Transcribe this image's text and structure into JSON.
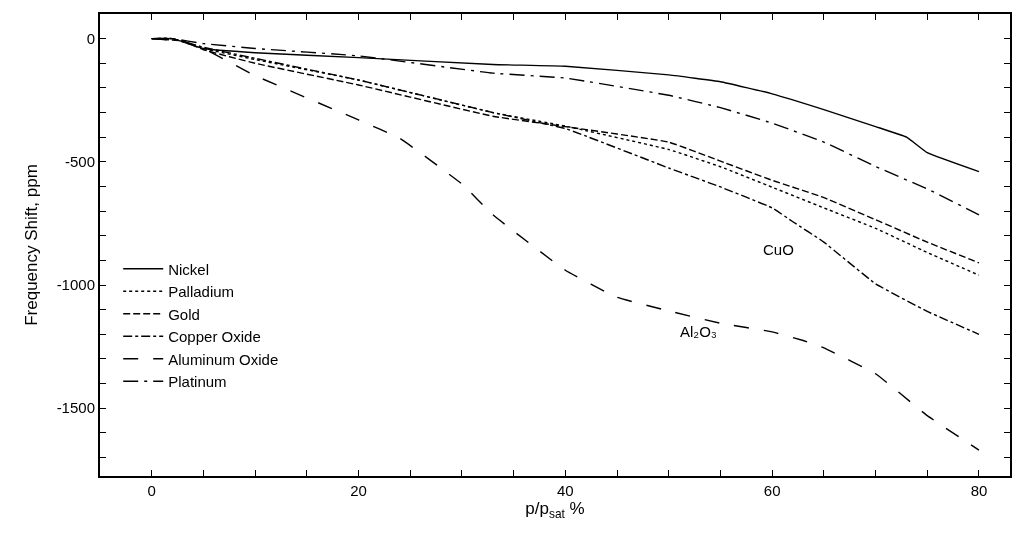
{
  "chart_data": {
    "type": "line",
    "xlabel": "p/p$_{sat}$ %",
    "ylabel": "Frequency Shift, ppm",
    "xlim": [
      -5,
      83
    ],
    "ylim": [
      -1775,
      100
    ],
    "xticks": [
      0,
      {
        "value": 5,
        "label": null
      },
      {
        "value": 10,
        "label": null
      },
      {
        "value": 15,
        "label": null
      },
      20,
      {
        "value": 25,
        "label": null
      },
      {
        "value": 30,
        "label": null
      },
      {
        "value": 35,
        "label": null
      },
      40,
      {
        "value": 45,
        "label": null
      },
      {
        "value": 50,
        "label": null
      },
      {
        "value": 55,
        "label": null
      },
      60,
      {
        "value": 65,
        "label": null
      },
      {
        "value": 70,
        "label": null
      },
      {
        "value": 75,
        "label": null
      },
      80
    ],
    "yticks": [
      0,
      {
        "value": -100,
        "label": null
      },
      {
        "value": -200,
        "label": null
      },
      {
        "value": -300,
        "label": null
      },
      {
        "value": -400,
        "label": null
      },
      -500,
      {
        "value": -600,
        "label": null
      },
      {
        "value": -700,
        "label": null
      },
      {
        "value": -800,
        "label": null
      },
      {
        "value": -900,
        "label": null
      },
      -1000,
      {
        "value": -1100,
        "label": null
      },
      {
        "value": -1200,
        "label": null
      },
      {
        "value": -1300,
        "label": null
      },
      {
        "value": -1400,
        "label": null
      },
      -1500,
      {
        "value": -1600,
        "label": null
      },
      {
        "value": -1700,
        "label": null
      }
    ],
    "legend": "bottom left",
    "marker": "none",
    "series": [
      {
        "name": "Nickel",
        "color": "#000000",
        "line_style": "solid",
        "x": [
          0,
          2,
          5,
          10,
          20,
          33,
          40,
          50,
          55,
          60,
          65,
          70,
          73,
          75,
          80
        ],
        "values": [
          0,
          0,
          -40,
          -57,
          -77,
          -105,
          -112,
          -147,
          -175,
          -224,
          -288,
          -357,
          -400,
          -463,
          -540
        ]
      },
      {
        "name": "Palladium",
        "color": "#000000",
        "line_style": "dotted",
        "x": [
          0,
          2,
          5,
          10,
          20,
          33,
          40,
          50,
          55,
          60,
          65,
          70,
          75,
          80
        ],
        "values": [
          0,
          0,
          -40,
          -85,
          -168,
          -300,
          -355,
          -450,
          -520,
          -603,
          -687,
          -770,
          -868,
          -960
        ]
      },
      {
        "name": "Gold",
        "color": "#000000",
        "line_style": "dashed",
        "x": [
          0,
          3,
          5,
          10,
          20,
          33,
          40,
          50,
          55,
          60,
          65,
          70,
          75,
          80
        ],
        "values": [
          0,
          -10,
          -45,
          -100,
          -188,
          -315,
          -357,
          -420,
          -497,
          -575,
          -645,
          -735,
          -826,
          -910
        ]
      },
      {
        "name": "Copper Oxide",
        "color": "#000000",
        "line_style": "dashdot",
        "x": [
          0,
          2,
          5,
          10,
          20,
          33,
          40,
          50,
          55,
          60,
          62,
          65,
          70,
          75,
          80
        ],
        "values": [
          0,
          0,
          -35,
          -80,
          -168,
          -300,
          -365,
          -525,
          -602,
          -687,
          -743,
          -826,
          -995,
          -1107,
          -1200
        ]
      },
      {
        "name": "Aluminum Oxide",
        "color": "#000000",
        "line_style": "longdash",
        "x": [
          0,
          3,
          5,
          10,
          20,
          24,
          30,
          33,
          40,
          45,
          50,
          55,
          60,
          63,
          65,
          70,
          75,
          80
        ],
        "values": [
          0,
          -10,
          -40,
          -150,
          -330,
          -405,
          -590,
          -715,
          -940,
          -1050,
          -1105,
          -1155,
          -1190,
          -1225,
          -1255,
          -1360,
          -1530,
          -1670
        ]
      },
      {
        "name": "Platinum",
        "color": "#000000",
        "line_style": "longdashdot",
        "x": [
          0,
          2,
          5,
          10,
          20,
          33,
          40,
          50,
          55,
          60,
          65,
          70,
          75,
          80
        ],
        "values": [
          0,
          0,
          -20,
          -40,
          -70,
          -140,
          -160,
          -230,
          -280,
          -343,
          -420,
          -519,
          -610,
          -715
        ]
      }
    ],
    "annotations": [
      "CuO",
      "Al₂O₃"
    ]
  }
}
